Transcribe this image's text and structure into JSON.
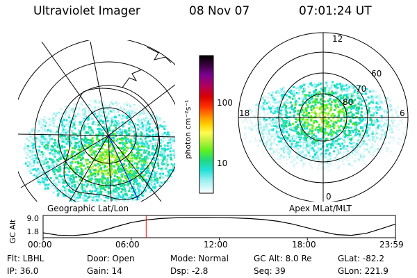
{
  "header": {
    "title": "Ultraviolet Imager",
    "date": "08 Nov 07",
    "time": "07:01:24 UT"
  },
  "geo_panel": {
    "caption": "Geographic Lat/Lon"
  },
  "mag_panel": {
    "caption": "Apex MLat/MLT",
    "mlt_labels": [
      "12",
      "18",
      "6",
      "0"
    ],
    "lat_labels": [
      "60",
      "70",
      "80"
    ]
  },
  "colorbar": {
    "label": "photon cm⁻²s⁻¹",
    "ticks": [
      "100",
      "10"
    ],
    "colors": [
      "#000000",
      "#3a0040",
      "#7a0090",
      "#b0005c",
      "#d80000",
      "#ff3000",
      "#ff8c00",
      "#ffd000",
      "#fffc50",
      "#c0f040",
      "#5ef020",
      "#20d880",
      "#20e0d8",
      "#a0f0f0",
      "#ffffff"
    ]
  },
  "altitude_strip": {
    "axis_title": "GC Alt",
    "y_ticks": [
      "9.0",
      "1.8"
    ],
    "x_ticks": [
      "00:00",
      "06:00",
      "12:00",
      "18:00",
      "23:59"
    ]
  },
  "chart_data": {
    "type": "line",
    "xlabel": "",
    "ylabel": "GC Alt",
    "xlim": [
      0,
      24
    ],
    "ylim": [
      1.8,
      9.0
    ],
    "x": [
      0,
      1,
      2,
      3,
      4,
      5,
      6,
      7,
      8,
      9,
      10,
      11,
      12,
      13,
      14,
      15,
      16,
      17,
      18,
      19,
      20,
      21,
      22,
      23,
      24
    ],
    "y": [
      2.9,
      2.0,
      1.8,
      2.3,
      3.6,
      5.4,
      7.0,
      8.0,
      8.6,
      8.9,
      9.0,
      9.0,
      8.95,
      8.85,
      8.6,
      8.2,
      7.5,
      6.4,
      4.9,
      3.4,
      2.2,
      1.9,
      2.7,
      4.5,
      6.4
    ],
    "marker_time": 7.02
  },
  "info": {
    "row1": {
      "flt": "Flt: LBHL",
      "door": "Door: Open",
      "mode": "Mode: Normal",
      "gcalt": "GC Alt: 8.0 Re",
      "glat": "GLat: -82.2"
    },
    "row2": {
      "ip": "IP: 36.0",
      "gain": "Gain: 14",
      "dsp": "Dsp:   -2.8",
      "seq": "Seq: 39",
      "glon": "GLon: 221.9"
    }
  }
}
